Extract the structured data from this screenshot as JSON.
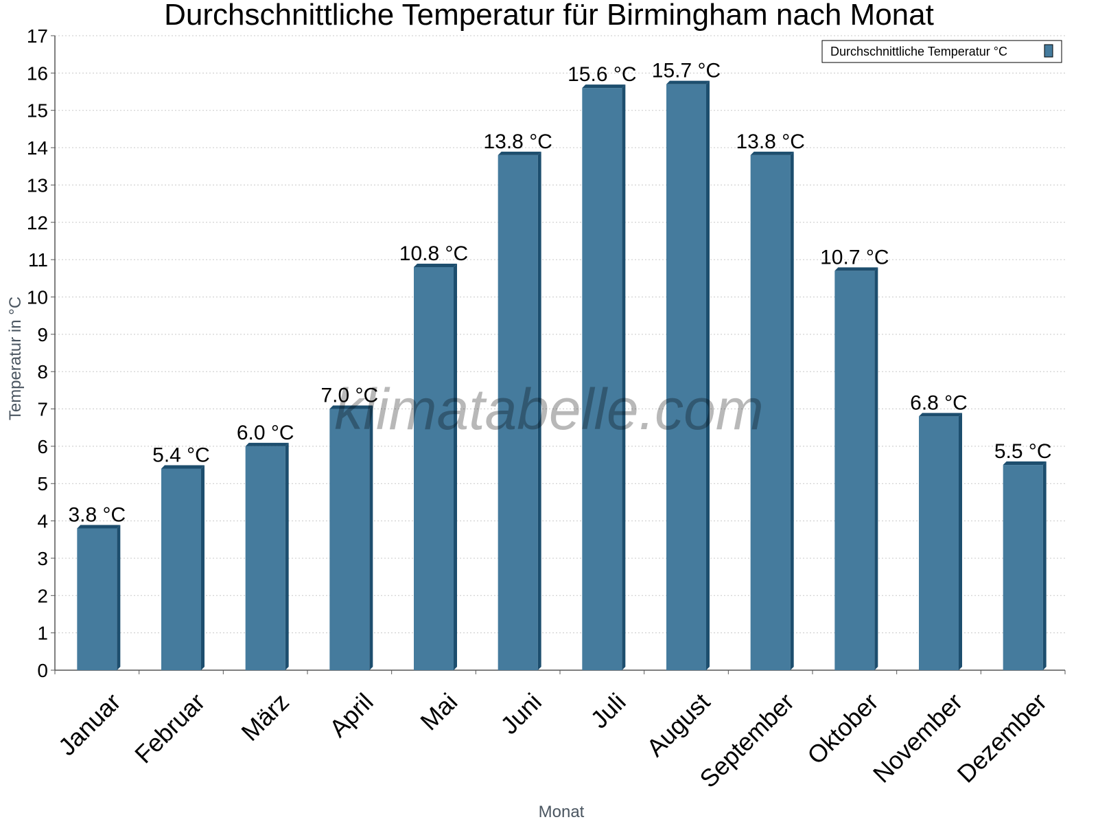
{
  "watermark": "klimatabelle.com",
  "chart_data": {
    "type": "bar",
    "title": "Durchschnittliche Temperatur für Birmingham nach Monat",
    "xlabel": "Monat",
    "ylabel": "Temperatur in °C",
    "ylim": [
      0,
      17
    ],
    "yticks": [
      "0",
      "1",
      "2",
      "3",
      "4",
      "5",
      "6",
      "7",
      "8",
      "9",
      "10",
      "11",
      "12",
      "13",
      "14",
      "15",
      "16",
      "17"
    ],
    "grid": true,
    "legend_position": "top-right",
    "categories": [
      "Januar",
      "Februar",
      "März",
      "April",
      "Mai",
      "Juni",
      "Juli",
      "August",
      "September",
      "Oktober",
      "November",
      "Dezember"
    ],
    "series": [
      {
        "name": "Durchschnittliche Temperatur °C",
        "values": [
          3.8,
          5.4,
          6.0,
          7.0,
          10.8,
          13.8,
          15.6,
          15.7,
          13.8,
          10.7,
          6.8,
          5.5
        ],
        "labels": [
          "3.8 °C",
          "5.4 °C",
          "6.0 °C",
          "7.0 °C",
          "10.8 °C",
          "13.8 °C",
          "15.6 °C",
          "15.7 °C",
          "13.8 °C",
          "10.7 °C",
          "6.8 °C",
          "5.5 °C"
        ],
        "color": "#457b9d",
        "side_color": "#1d4e6e"
      }
    ]
  }
}
